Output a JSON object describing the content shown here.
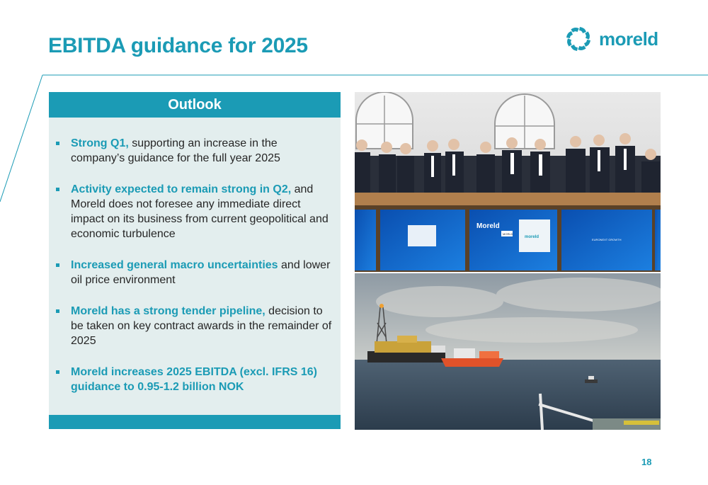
{
  "slide": {
    "title": "EBITDA guidance for 2025",
    "page_number": "18"
  },
  "logo": {
    "text": "moreld",
    "icon": "sunburst-logo-icon"
  },
  "outlook": {
    "header": "Outlook",
    "bullets": [
      {
        "highlight": "Strong Q1,",
        "text": " supporting an increase in the company’s guidance for the full year 2025"
      },
      {
        "highlight": "Activity expected to remain strong in Q2,",
        "text": " and Moreld does not foresee any immediate direct impact on its business from current geopolitical and economic turbulence"
      },
      {
        "highlight": "Increased general macro uncertainties",
        "text": " and lower oil price environment"
      },
      {
        "highlight": "Moreld has a strong tender pipeline,",
        "text": " decision to be taken on key contract awards in the remainder of 2025"
      },
      {
        "highlight": "Moreld increases 2025 EBITDA (excl. IFRS 16) guidance to 0.95-1.2 billion NOK",
        "text": ""
      }
    ]
  },
  "photos": {
    "top": {
      "screen_logo": "Moreld",
      "screen_tag": "MORLD",
      "screen_logo_small": "moreld",
      "screen_right_text": "EURONEXT GROWTH"
    },
    "bottom": {}
  },
  "colors": {
    "accent": "#1b9bb5",
    "panel_bg": "#e3eeee",
    "text": "#262626"
  }
}
